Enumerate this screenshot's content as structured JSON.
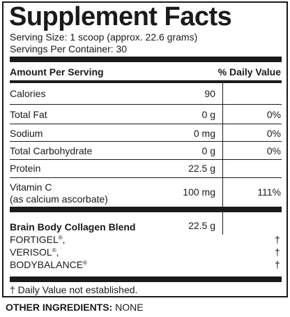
{
  "title": "Supplement Facts",
  "serving_size": "Serving Size: 1 scoop (approx. 22.6 grams)",
  "servings_per_container": "Servings Per Container: 30",
  "header": {
    "amount": "Amount Per Serving",
    "daily_value": "% Daily Value"
  },
  "rows": [
    {
      "name": "Calories",
      "amount": "90",
      "dv": ""
    },
    {
      "name": "Total Fat",
      "amount": "0 g",
      "dv": "0%"
    },
    {
      "name": "Sodium",
      "amount": "0 mg",
      "dv": "0%"
    },
    {
      "name": "Total Carbohydrate",
      "amount": "0 g",
      "dv": "0%"
    },
    {
      "name": "Protein",
      "amount": "22.5 g",
      "dv": ""
    },
    {
      "name": "Vitamin C",
      "sub": "(as calcium ascorbate)",
      "amount": "100 mg",
      "dv": "111%"
    }
  ],
  "blend": {
    "name": "Brain Body Collagen Blend",
    "amount": "22.5 g",
    "items": [
      {
        "name": "FORTIGEL",
        "mark": "®",
        "suffix": ",",
        "dv": "†"
      },
      {
        "name": "VERISOL",
        "mark": "®",
        "suffix": ",",
        "dv": "†"
      },
      {
        "name": "BODYBALANCE",
        "mark": "®",
        "suffix": "",
        "dv": "†"
      }
    ]
  },
  "footnote": "† Daily Value not established.",
  "other_ingredients": {
    "label": "OTHER INGREDIENTS:",
    "value": "NONE"
  }
}
